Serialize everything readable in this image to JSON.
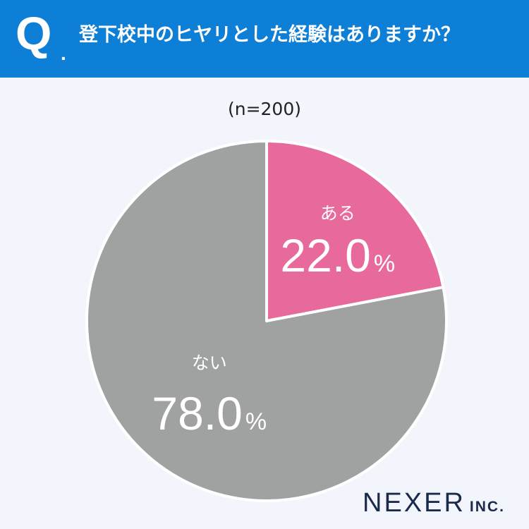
{
  "header": {
    "q_mark": "Q",
    "q_dot": ".",
    "question": "登下校中のヒヤリとした経験はありますか？",
    "color": "#0e7fd6"
  },
  "sample_size": "(n=200)",
  "chart_data": {
    "type": "pie",
    "slices": [
      {
        "label": "ある",
        "value": 22.0,
        "display": "22.0",
        "unit": "%",
        "color": "#e8699b"
      },
      {
        "label": "ない",
        "value": 78.0,
        "display": "78.0",
        "unit": "%",
        "color": "#a0a2a1"
      }
    ],
    "start": "12 o'clock",
    "direction": "clockwise"
  },
  "brand": {
    "name": "NEXER",
    "suffix": "INC."
  }
}
